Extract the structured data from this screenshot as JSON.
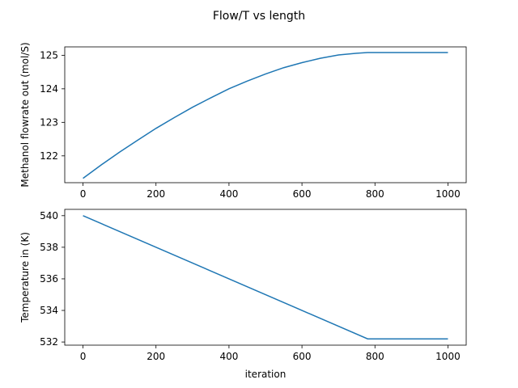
{
  "figure": {
    "title": "Flow/T vs length",
    "line_color": "#1f77b4",
    "axis_color": "#000000",
    "background": "#ffffff"
  },
  "chart_data": [
    {
      "type": "line",
      "title": "",
      "xlabel": "",
      "ylabel": "Methanol flowrate out (mol/S)",
      "xlim": [
        -50,
        1050
      ],
      "ylim": [
        121.2,
        125.25
      ],
      "xticks": [
        0,
        200,
        400,
        600,
        800,
        1000
      ],
      "yticks": [
        122,
        123,
        124,
        125
      ],
      "xticklabels": [
        "0",
        "200",
        "400",
        "600",
        "800",
        "1000"
      ],
      "yticklabels": [
        "122",
        "123",
        "124",
        "125"
      ],
      "series": [
        {
          "name": "Methanol flowrate out",
          "x": [
            0,
            50,
            100,
            150,
            200,
            250,
            300,
            350,
            400,
            450,
            500,
            550,
            600,
            650,
            700,
            750,
            780,
            800,
            850,
            900,
            950,
            1000
          ],
          "y": [
            121.33,
            121.73,
            122.11,
            122.47,
            122.82,
            123.14,
            123.45,
            123.73,
            124.0,
            124.23,
            124.44,
            124.63,
            124.78,
            124.91,
            125.01,
            125.06,
            125.08,
            125.08,
            125.08,
            125.08,
            125.08,
            125.08
          ]
        }
      ]
    },
    {
      "type": "line",
      "title": "",
      "xlabel": "iteration",
      "ylabel": "Temperature in (K)",
      "xlim": [
        -50,
        1050
      ],
      "ylim": [
        531.8,
        540.4
      ],
      "xticks": [
        0,
        200,
        400,
        600,
        800,
        1000
      ],
      "yticks": [
        532,
        534,
        536,
        538,
        540
      ],
      "xticklabels": [
        "0",
        "200",
        "400",
        "600",
        "800",
        "1000"
      ],
      "yticklabels": [
        "532",
        "534",
        "536",
        "538",
        "540"
      ],
      "series": [
        {
          "name": "Temperature in",
          "x": [
            0,
            780,
            1000
          ],
          "y": [
            540.0,
            532.2,
            532.2
          ]
        }
      ]
    }
  ]
}
